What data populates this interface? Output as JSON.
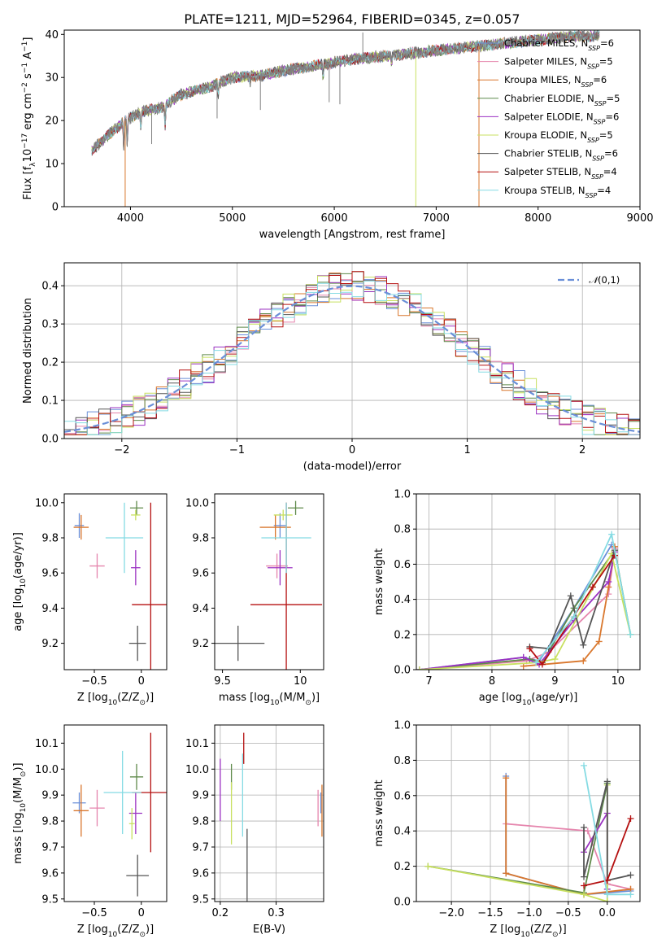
{
  "figure": {
    "title": "PLATE=1211, MJD=52964, FIBERID=0345, z=0.057"
  },
  "colors": {
    "chabrier_miles": "#6a8fd8",
    "salpeter_miles": "#e585ad",
    "kroupa_miles": "#d9772d",
    "chabrier_elodie": "#5f8a4a",
    "salpeter_elodie": "#9b32c2",
    "kroupa_elodie": "#c8e060",
    "chabrier_stelib": "#555555",
    "salpeter_stelib": "#b51010",
    "kroupa_stelib": "#85dbe3",
    "normal_curve": "#6a8fd8",
    "data_spectrum": "#808080"
  },
  "chart_data": [
    {
      "id": "spectrum",
      "type": "line",
      "title": "PLATE=1211, MJD=52964, FIBERID=0345, z=0.057",
      "xlabel": "wavelength [Angstrom, rest frame]",
      "ylabel": "Flux [f_λ10^-17 erg cm^-2 s^-1 A^-1]",
      "xlim": [
        3350,
        9000
      ],
      "ylim": [
        0,
        41
      ],
      "xticks": [
        4000,
        5000,
        6000,
        7000,
        8000,
        9000
      ],
      "yticks": [
        0,
        10,
        20,
        30,
        40
      ],
      "continuum": {
        "x": [
          3620,
          3800,
          3950,
          4100,
          4300,
          4500,
          4800,
          5000,
          5300,
          5600,
          5900,
          6100,
          6300,
          6500,
          6700,
          6900,
          7100,
          7300,
          7500,
          7700,
          7900,
          8100,
          8300,
          8500,
          8600
        ],
        "y": [
          13,
          17,
          20,
          22,
          23,
          26,
          28,
          30,
          30.5,
          32,
          33,
          34,
          34.5,
          35,
          35.5,
          36,
          36.5,
          37,
          37.5,
          38,
          38.5,
          39,
          39.5,
          39.5,
          40
        ]
      },
      "legend": [
        {
          "label": "Chabrier MILES, N_SSP=6",
          "color_key": "chabrier_miles"
        },
        {
          "label": "Salpeter MILES, N_SSP=5",
          "color_key": "salpeter_miles"
        },
        {
          "label": "Kroupa MILES, N_SSP=6",
          "color_key": "kroupa_miles"
        },
        {
          "label": "Chabrier ELODIE, N_SSP=5",
          "color_key": "chabrier_elodie"
        },
        {
          "label": "Salpeter ELODIE, N_SSP=6",
          "color_key": "salpeter_elodie"
        },
        {
          "label": "Kroupa ELODIE, N_SSP=5",
          "color_key": "kroupa_elodie"
        },
        {
          "label": "Chabrier STELIB, N_SSP=6",
          "color_key": "chabrier_stelib"
        },
        {
          "label": "Salpeter STELIB, N_SSP=4",
          "color_key": "salpeter_stelib"
        },
        {
          "label": "Kroupa STELIB, N_SSP=4",
          "color_key": "kroupa_stelib"
        }
      ],
      "legend_placement": "upper right"
    },
    {
      "id": "residuals",
      "type": "step-histogram",
      "xlabel": "(data-model)/error",
      "ylabel": "Normed distribution",
      "xlim": [
        -2.5,
        2.5
      ],
      "ylim": [
        0,
        0.46
      ],
      "xticks": [
        -2,
        -1,
        0,
        1,
        2
      ],
      "yticks": [
        0.0,
        0.1,
        0.2,
        0.3,
        0.4
      ],
      "grid": true,
      "bin_edges_start": -2.5,
      "bin_width": 0.1,
      "normal_label": "N(0,1)",
      "legend_placement": "upper right"
    },
    {
      "id": "z_age",
      "type": "errorbar",
      "xlabel": "Z [log10(Z/Z☉)]",
      "ylabel": "age  [log10(age/yr)]",
      "xlim": [
        -0.82,
        0.27
      ],
      "ylim": [
        9.05,
        10.05
      ],
      "xticks": [
        -0.5,
        0.0
      ],
      "yticks": [
        9.2,
        9.4,
        9.6,
        9.8,
        10.0
      ],
      "points": [
        {
          "key": "chabrier_miles",
          "x": -0.66,
          "y": 9.87,
          "xerr": 0.05,
          "yerr": 0.07
        },
        {
          "key": "salpeter_miles",
          "x": -0.47,
          "y": 9.64,
          "xerr": 0.08,
          "yerr": 0.07
        },
        {
          "key": "kroupa_miles",
          "x": -0.64,
          "y": 9.86,
          "xerr": 0.08,
          "yerr": 0.07
        },
        {
          "key": "chabrier_elodie",
          "x": -0.05,
          "y": 9.97,
          "xerr": 0.07,
          "yerr": 0.04
        },
        {
          "key": "salpeter_elodie",
          "x": -0.06,
          "y": 9.63,
          "xerr": 0.05,
          "yerr": 0.1
        },
        {
          "key": "kroupa_elodie",
          "x": -0.06,
          "y": 9.93,
          "xerr": 0.05,
          "yerr": 0.03
        },
        {
          "key": "chabrier_stelib",
          "x": -0.04,
          "y": 9.2,
          "xerr": 0.09,
          "yerr": 0.1
        },
        {
          "key": "salpeter_stelib",
          "x": 0.1,
          "y": 9.42,
          "xerr": 0.2,
          "yerr": 0.58
        },
        {
          "key": "kroupa_stelib",
          "x": -0.18,
          "y": 9.8,
          "xerr": 0.2,
          "yerr": 0.2
        }
      ]
    },
    {
      "id": "mass_age",
      "type": "errorbar",
      "xlabel": "mass [log10(M/M☉)]",
      "ylabel": "",
      "xlim": [
        9.45,
        10.15
      ],
      "ylim": [
        9.05,
        10.05
      ],
      "xticks": [
        9.5,
        10.0
      ],
      "yticks": [
        9.2,
        9.4,
        9.6,
        9.8,
        10.0
      ],
      "points": [
        {
          "key": "chabrier_miles",
          "x": 9.87,
          "y": 9.87,
          "xerr": 0.04,
          "yerr": 0.07
        },
        {
          "key": "salpeter_miles",
          "x": 9.85,
          "y": 9.64,
          "xerr": 0.07,
          "yerr": 0.07
        },
        {
          "key": "kroupa_miles",
          "x": 9.84,
          "y": 9.86,
          "xerr": 0.1,
          "yerr": 0.07
        },
        {
          "key": "chabrier_elodie",
          "x": 9.97,
          "y": 9.97,
          "xerr": 0.05,
          "yerr": 0.04
        },
        {
          "key": "salpeter_elodie",
          "x": 9.87,
          "y": 9.63,
          "xerr": 0.08,
          "yerr": 0.1
        },
        {
          "key": "kroupa_elodie",
          "x": 9.89,
          "y": 9.93,
          "xerr": 0.06,
          "yerr": 0.03
        },
        {
          "key": "chabrier_stelib",
          "x": 9.6,
          "y": 9.2,
          "xerr": 0.17,
          "yerr": 0.1
        },
        {
          "key": "salpeter_stelib",
          "x": 9.91,
          "y": 9.42,
          "xerr": 0.23,
          "yerr": 0.58
        },
        {
          "key": "kroupa_stelib",
          "x": 9.91,
          "y": 9.8,
          "xerr": 0.16,
          "yerr": 0.2
        }
      ]
    },
    {
      "id": "age_weight",
      "type": "line",
      "xlabel": "age  [log10(age/yr)]",
      "ylabel": "mass weight",
      "xlim": [
        6.8,
        10.35
      ],
      "ylim": [
        0,
        1.0
      ],
      "xticks": [
        7,
        8,
        9,
        10
      ],
      "yticks": [
        0.0,
        0.2,
        0.4,
        0.6,
        0.8,
        1.0
      ],
      "grid": true,
      "series": [
        {
          "key": "chabrier_miles",
          "x": [
            6.85,
            8.5,
            8.75,
            9.3,
            9.9
          ],
          "y": [
            0.0,
            0.07,
            0.05,
            0.35,
            0.71
          ]
        },
        {
          "key": "salpeter_miles",
          "x": [
            6.85,
            8.55,
            8.9,
            9.85,
            9.95
          ],
          "y": [
            0.0,
            0.05,
            0.1,
            0.43,
            0.69
          ]
        },
        {
          "key": "kroupa_miles",
          "x": [
            8.5,
            9.45,
            9.7,
            9.85,
            9.95
          ],
          "y": [
            0.02,
            0.05,
            0.16,
            0.47,
            0.7
          ]
        },
        {
          "key": "chabrier_elodie",
          "x": [
            6.85,
            8.6,
            8.8,
            9.3,
            9.95,
            10.2
          ],
          "y": [
            0.0,
            0.06,
            0.04,
            0.35,
            0.68,
            0.2
          ]
        },
        {
          "key": "salpeter_elodie",
          "x": [
            6.85,
            8.5,
            8.75,
            9.3,
            9.85,
            9.95
          ],
          "y": [
            0.0,
            0.07,
            0.03,
            0.28,
            0.5,
            0.67
          ]
        },
        {
          "key": "kroupa_elodie",
          "x": [
            6.85,
            8.7,
            9.0,
            9.9,
            10.2
          ],
          "y": [
            0.0,
            0.04,
            0.06,
            0.66,
            0.2
          ]
        },
        {
          "key": "chabrier_stelib",
          "x": [
            8.6,
            8.9,
            9.25,
            9.45,
            9.95
          ],
          "y": [
            0.13,
            0.12,
            0.42,
            0.14,
            0.68
          ]
        },
        {
          "key": "salpeter_stelib",
          "x": [
            8.6,
            8.8,
            9.6,
            9.95
          ],
          "y": [
            0.12,
            0.03,
            0.47,
            0.65
          ]
        },
        {
          "key": "kroupa_stelib",
          "x": [
            8.7,
            9.3,
            9.9,
            10.2
          ],
          "y": [
            0.04,
            0.3,
            0.77,
            0.2
          ]
        }
      ]
    },
    {
      "id": "z_mass",
      "type": "errorbar",
      "xlabel": "Z [log10(Z/Z☉)]",
      "ylabel": "mass [log10(M/M☉)]",
      "xlim": [
        -0.82,
        0.27
      ],
      "ylim": [
        9.49,
        10.17
      ],
      "xticks": [
        -0.5,
        0.0
      ],
      "yticks": [
        9.5,
        9.6,
        9.7,
        9.8,
        9.9,
        10.0,
        10.1
      ],
      "points": [
        {
          "key": "chabrier_miles",
          "x": -0.66,
          "y": 9.87,
          "xerr": 0.07,
          "yerr": 0.04
        },
        {
          "key": "salpeter_miles",
          "x": -0.47,
          "y": 9.85,
          "xerr": 0.08,
          "yerr": 0.07
        },
        {
          "key": "kroupa_miles",
          "x": -0.64,
          "y": 9.84,
          "xerr": 0.08,
          "yerr": 0.1
        },
        {
          "key": "chabrier_elodie",
          "x": -0.05,
          "y": 9.97,
          "xerr": 0.07,
          "yerr": 0.05
        },
        {
          "key": "salpeter_elodie",
          "x": -0.06,
          "y": 9.83,
          "xerr": 0.07,
          "yerr": 0.08
        },
        {
          "key": "kroupa_elodie",
          "x": -0.1,
          "y": 9.79,
          "xerr": 0.03,
          "yerr": 0.06
        },
        {
          "key": "chabrier_stelib",
          "x": -0.04,
          "y": 9.59,
          "xerr": 0.12,
          "yerr": 0.08
        },
        {
          "key": "salpeter_stelib",
          "x": 0.1,
          "y": 9.91,
          "xerr": 0.2,
          "yerr": 0.23
        },
        {
          "key": "kroupa_stelib",
          "x": -0.2,
          "y": 9.91,
          "xerr": 0.2,
          "yerr": 0.16
        }
      ]
    },
    {
      "id": "ebv_mass",
      "type": "errorbar",
      "xlabel": "E(B-V)",
      "ylabel": "",
      "xlim": [
        0.19,
        0.385
      ],
      "ylim": [
        9.49,
        10.17
      ],
      "xticks": [
        0.2,
        0.3
      ],
      "yticks": [
        9.5,
        9.6,
        9.7,
        9.8,
        9.9,
        10.0,
        10.1
      ],
      "grid": true,
      "points": [
        {
          "key": "chabrier_miles",
          "x": 0.38,
          "y": 9.87,
          "xerr": 0.0,
          "yerr": 0.04
        },
        {
          "key": "salpeter_miles",
          "x": 0.375,
          "y": 9.85,
          "xerr": 0.0,
          "yerr": 0.07
        },
        {
          "key": "kroupa_miles",
          "x": 0.382,
          "y": 9.84,
          "xerr": 0.0,
          "yerr": 0.1
        },
        {
          "key": "chabrier_elodie",
          "x": 0.22,
          "y": 9.97,
          "xerr": 0.0,
          "yerr": 0.05
        },
        {
          "key": "salpeter_elodie",
          "x": 0.2,
          "y": 9.92,
          "xerr": 0.0,
          "yerr": 0.12
        },
        {
          "key": "kroupa_elodie",
          "x": 0.22,
          "y": 9.83,
          "xerr": 0.0,
          "yerr": 0.12
        },
        {
          "key": "chabrier_stelib",
          "x": 0.248,
          "y": 9.63,
          "xerr": 0.0,
          "yerr": 0.14
        },
        {
          "key": "salpeter_stelib",
          "x": 0.242,
          "y": 10.08,
          "xerr": 0.0,
          "yerr": 0.06
        },
        {
          "key": "kroupa_stelib",
          "x": 0.24,
          "y": 9.9,
          "xerr": 0.0,
          "yerr": 0.16
        }
      ]
    },
    {
      "id": "z_weight",
      "type": "line",
      "xlabel": "Z [log10(Z/Z☉)]",
      "ylabel": "mass weight",
      "xlim": [
        -2.45,
        0.42
      ],
      "ylim": [
        0,
        1.0
      ],
      "xticks": [
        -2.0,
        -1.5,
        -1.0,
        -0.5,
        0.0
      ],
      "yticks": [
        0.0,
        0.2,
        0.4,
        0.6,
        0.8,
        1.0
      ],
      "grid": true,
      "series": [
        {
          "key": "chabrier_miles",
          "x": [
            -1.3,
            -1.3,
            -0.3,
            0.3
          ],
          "y": [
            0.71,
            0.16,
            0.04,
            0.06
          ]
        },
        {
          "key": "salpeter_miles",
          "x": [
            -1.3,
            -0.25,
            0.0,
            0.3
          ],
          "y": [
            0.44,
            0.4,
            0.1,
            0.07
          ]
        },
        {
          "key": "kroupa_miles",
          "x": [
            -1.3,
            -1.3,
            -0.3,
            0.3
          ],
          "y": [
            0.7,
            0.16,
            0.04,
            0.07
          ]
        },
        {
          "key": "chabrier_elodie",
          "x": [
            -2.3,
            -0.3,
            0.0
          ],
          "y": [
            0.2,
            0.05,
            0.67
          ]
        },
        {
          "key": "salpeter_elodie",
          "x": [
            -0.3,
            0.0,
            0.0
          ],
          "y": [
            0.28,
            0.5,
            0.07
          ]
        },
        {
          "key": "kroupa_elodie",
          "x": [
            -2.3,
            -0.3,
            0.0,
            0.0
          ],
          "y": [
            0.2,
            0.04,
            0.0,
            0.66
          ]
        },
        {
          "key": "chabrier_stelib",
          "x": [
            -0.3,
            -0.3,
            0.0,
            0.0,
            0.3
          ],
          "y": [
            0.42,
            0.14,
            0.68,
            0.12,
            0.15
          ]
        },
        {
          "key": "salpeter_stelib",
          "x": [
            -0.3,
            0.0,
            0.3
          ],
          "y": [
            0.09,
            0.12,
            0.47
          ]
        },
        {
          "key": "kroupa_stelib",
          "x": [
            -0.3,
            0.0,
            0.3
          ],
          "y": [
            0.77,
            0.04,
            0.04
          ]
        }
      ]
    }
  ]
}
